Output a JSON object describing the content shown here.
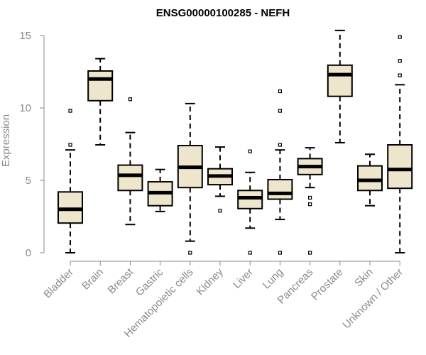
{
  "chart_data": {
    "type": "boxplot",
    "title": "ENSG00000100285 - NEFH",
    "xlabel": "",
    "ylabel": "Expression",
    "ylim": [
      0,
      15.4
    ],
    "yticks": [
      0,
      5,
      10,
      15
    ],
    "box_fill": "#ede5cc",
    "grid": false,
    "categories": [
      "Bladder",
      "Brain",
      "Breast",
      "Gastric",
      "Hematopoietic cells",
      "Kidney",
      "Liver",
      "Lung",
      "Pancreas",
      "Prostate",
      "Skin",
      "Unknown / Other"
    ],
    "boxes": [
      {
        "min": 0.0,
        "q1": 2.05,
        "median": 3.0,
        "q3": 4.2,
        "max": 7.1,
        "outliers": [
          7.45,
          9.8
        ]
      },
      {
        "min": 7.45,
        "q1": 10.5,
        "median": 12.0,
        "q3": 12.55,
        "max": 13.4,
        "outliers": []
      },
      {
        "min": 1.95,
        "q1": 4.3,
        "median": 5.35,
        "q3": 6.05,
        "max": 8.3,
        "outliers": [
          10.6
        ]
      },
      {
        "min": 2.85,
        "q1": 3.25,
        "median": 4.15,
        "q3": 4.9,
        "max": 5.75,
        "outliers": []
      },
      {
        "min": 0.8,
        "q1": 4.5,
        "median": 5.9,
        "q3": 7.4,
        "max": 10.3,
        "outliers": [
          0.0
        ]
      },
      {
        "min": 3.9,
        "q1": 4.7,
        "median": 5.3,
        "q3": 5.8,
        "max": 7.3,
        "outliers": [
          2.9
        ]
      },
      {
        "min": 1.7,
        "q1": 3.05,
        "median": 3.8,
        "q3": 4.3,
        "max": 5.55,
        "outliers": [
          0.0,
          7.0
        ]
      },
      {
        "min": 2.3,
        "q1": 3.7,
        "median": 4.1,
        "q3": 5.05,
        "max": 7.1,
        "outliers": [
          0.0,
          7.45,
          9.8,
          11.15
        ]
      },
      {
        "min": 4.5,
        "q1": 5.4,
        "median": 5.95,
        "q3": 6.5,
        "max": 7.25,
        "outliers": [
          0.0,
          3.35,
          3.8
        ]
      },
      {
        "min": 7.6,
        "q1": 10.8,
        "median": 12.3,
        "q3": 12.95,
        "max": 15.35,
        "outliers": []
      },
      {
        "min": 3.25,
        "q1": 4.3,
        "median": 5.0,
        "q3": 6.0,
        "max": 6.8,
        "outliers": []
      },
      {
        "min": 0.0,
        "q1": 4.45,
        "median": 5.75,
        "q3": 7.45,
        "max": 11.6,
        "outliers": [
          12.25,
          13.25,
          14.9
        ]
      }
    ]
  }
}
